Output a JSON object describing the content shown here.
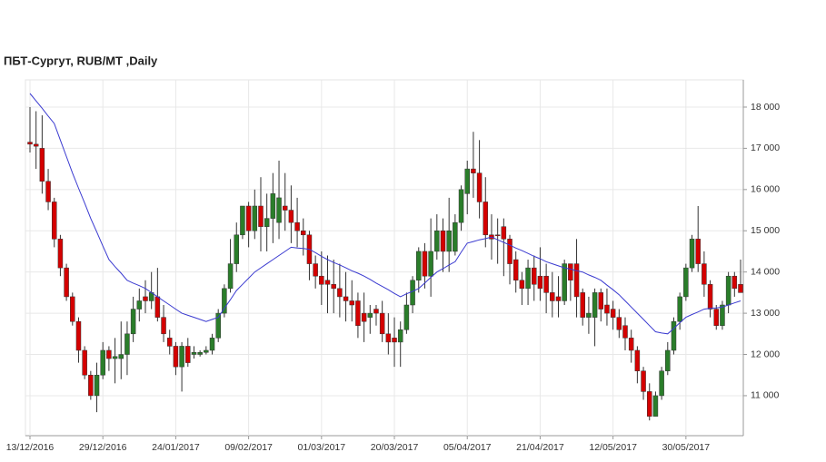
{
  "chart_data": {
    "type": "candlestick",
    "title": "ПБТ-Сургут,  RUB/MT ,Daily",
    "categories": [
      "13/12/2016",
      null,
      null,
      null,
      null,
      null,
      null,
      null,
      null,
      null,
      null,
      null,
      "29/12/2016",
      null,
      null,
      null,
      null,
      null,
      null,
      null,
      null,
      null,
      null,
      null,
      "24/01/2017",
      null,
      null,
      null,
      null,
      null,
      null,
      null,
      null,
      null,
      null,
      null,
      "09/02/2017",
      null,
      null,
      null,
      null,
      null,
      null,
      null,
      null,
      null,
      null,
      null,
      "01/03/2017",
      null,
      null,
      null,
      null,
      null,
      null,
      null,
      null,
      null,
      null,
      null,
      "20/03/2017",
      null,
      null,
      null,
      null,
      null,
      null,
      null,
      null,
      null,
      null,
      null,
      "05/04/2017",
      null,
      null,
      null,
      null,
      null,
      null,
      null,
      null,
      null,
      null,
      null,
      "21/04/2017",
      null,
      null,
      null,
      null,
      null,
      null,
      null,
      null,
      null,
      null,
      null,
      "12/05/2017",
      null,
      null,
      null,
      null,
      null,
      null,
      null,
      null,
      null,
      null,
      null,
      "30/05/2017",
      null,
      null,
      null,
      null,
      null,
      null,
      null,
      null,
      null
    ],
    "open": [
      17150,
      17100,
      17000,
      16200,
      15700,
      14800,
      14100,
      13400,
      12800,
      12100,
      11500,
      11000,
      11500,
      12100,
      11900,
      11900,
      12000,
      12500,
      13100,
      13400,
      13300,
      13400,
      12900,
      12400,
      12200,
      11700,
      12200,
      12000,
      12000,
      12050,
      12100,
      12400,
      13000,
      13600,
      14200,
      14900,
      15600,
      15000,
      15600,
      15100,
      15300,
      15200,
      15600,
      15500,
      15200,
      15000,
      14900,
      14200,
      13900,
      13800,
      13700,
      13600,
      13400,
      13300,
      13300,
      13000,
      12900,
      13100,
      13000,
      12500,
      12400,
      12300,
      12600,
      13200,
      13800,
      14500,
      13900,
      14500,
      15000,
      14500,
      14500,
      15200,
      15900,
      16500,
      16400,
      15700,
      14900,
      14900,
      15100,
      14800,
      14300,
      13800,
      13600,
      14100,
      13900,
      13900,
      13500,
      13400,
      13300,
      14200,
      14200,
      13500,
      12900,
      12900,
      13500,
      13200,
      13100,
      12900,
      12700,
      12400,
      12100,
      11600,
      11100,
      10500,
      11000,
      11600,
      12100,
      12800,
      13400,
      14100,
      14800,
      14200,
      13700,
      13100,
      12700,
      13200,
      13900,
      13700
    ],
    "high": [
      18000,
      17900,
      17800,
      16500,
      15800,
      14900,
      14200,
      13500,
      12900,
      12200,
      11600,
      11800,
      12300,
      12200,
      12400,
      12800,
      12800,
      13400,
      13600,
      13800,
      14000,
      14100,
      13200,
      12600,
      12300,
      12300,
      12400,
      12200,
      12100,
      12200,
      12500,
      13100,
      13700,
      14800,
      15200,
      15600,
      15700,
      16000,
      16300,
      15900,
      16400,
      16700,
      16400,
      16100,
      15800,
      15300,
      15000,
      14400,
      14500,
      14400,
      14300,
      14200,
      14000,
      13800,
      13500,
      13500,
      13200,
      13200,
      13300,
      13000,
      12900,
      12800,
      13500,
      13900,
      14600,
      14700,
      15300,
      15400,
      15300,
      15800,
      15400,
      16100,
      16700,
      17400,
      17200,
      16300,
      15400,
      15300,
      15300,
      14900,
      14500,
      14000,
      14300,
      14400,
      14600,
      14200,
      14000,
      13900,
      14300,
      14200,
      14800,
      13600,
      13400,
      13600,
      13600,
      13600,
      13300,
      13100,
      12900,
      12600,
      12200,
      11700,
      11300,
      11100,
      11700,
      12300,
      12900,
      13500,
      14200,
      14900,
      15600,
      14500,
      13800,
      13200,
      13300,
      14000,
      14000,
      14300
    ],
    "low": [
      16900,
      16500,
      15900,
      15500,
      14600,
      13900,
      13300,
      12700,
      11800,
      11400,
      10900,
      10600,
      11400,
      11600,
      11300,
      11400,
      11500,
      12300,
      12800,
      13000,
      13100,
      12800,
      12300,
      12000,
      11500,
      11100,
      11700,
      11900,
      11950,
      12000,
      12000,
      12300,
      12900,
      13500,
      14000,
      14800,
      14600,
      14800,
      14500,
      14500,
      14700,
      14800,
      15000,
      14700,
      14600,
      14400,
      13800,
      13600,
      13200,
      13000,
      13000,
      12900,
      12800,
      12800,
      12400,
      12300,
      12500,
      12700,
      12300,
      12000,
      11700,
      11700,
      12500,
      13000,
      13500,
      13600,
      13400,
      14300,
      14000,
      14000,
      14400,
      15000,
      15400,
      15800,
      15300,
      14600,
      14300,
      14200,
      13900,
      13700,
      13500,
      13200,
      13200,
      13300,
      13300,
      13000,
      12900,
      12900,
      13200,
      13300,
      12900,
      12700,
      12500,
      12200,
      12800,
      12700,
      12600,
      12400,
      12100,
      11800,
      11300,
      10900,
      10400,
      10500,
      10900,
      11500,
      12000,
      12600,
      13300,
      14000,
      14000,
      13400,
      12900,
      12600,
      12600,
      13000,
      13400,
      13500
    ],
    "close": [
      17100,
      17050,
      16200,
      15700,
      14800,
      14100,
      13400,
      12800,
      12100,
      11500,
      11000,
      11500,
      12100,
      11900,
      11950,
      12000,
      12500,
      13100,
      13300,
      13300,
      13500,
      12900,
      12500,
      12200,
      11700,
      12200,
      11800,
      12050,
      12050,
      12100,
      12400,
      13000,
      13600,
      14200,
      14900,
      15600,
      15000,
      15600,
      15100,
      15300,
      15900,
      15800,
      15500,
      15200,
      15000,
      14900,
      14200,
      13900,
      13700,
      13700,
      13600,
      13400,
      13300,
      13200,
      12700,
      12800,
      13000,
      13000,
      12500,
      12300,
      12300,
      12600,
      13200,
      13800,
      14500,
      13900,
      14500,
      15000,
      14500,
      15000,
      15200,
      16000,
      16500,
      16400,
      15700,
      14900,
      14800,
      14900,
      14800,
      14200,
      13800,
      13600,
      14100,
      13700,
      13600,
      13500,
      13300,
      13300,
      14200,
      13800,
      13400,
      12900,
      13000,
      13500,
      13100,
      13000,
      12900,
      12600,
      12400,
      12100,
      11600,
      11100,
      10500,
      11000,
      11600,
      12100,
      12800,
      13400,
      14100,
      14800,
      14200,
      13700,
      13100,
      12700,
      13200,
      13900,
      13600,
      13500
    ],
    "up_color": "#2a7d2a",
    "down_color": "#d40000",
    "moving_average": {
      "color": "#3a3ad0",
      "values": [
        18330,
        18150,
        17970,
        17780,
        17600,
        17200,
        16800,
        16400,
        16030,
        15670,
        15300,
        14970,
        14630,
        14300,
        14130,
        13970,
        13800,
        13730,
        13670,
        13600,
        13500,
        13400,
        13300,
        13200,
        13100,
        13000,
        12950,
        12900,
        12850,
        12800,
        12850,
        12900,
        13120,
        13330,
        13550,
        13700,
        13850,
        14000,
        14100,
        14200,
        14300,
        14400,
        14500,
        14600,
        14580,
        14570,
        14550,
        14470,
        14380,
        14300,
        14230,
        14170,
        14100,
        14030,
        13970,
        13900,
        13820,
        13730,
        13650,
        13570,
        13480,
        13400,
        13470,
        13530,
        13600,
        13730,
        13870,
        14000,
        14080,
        14170,
        14250,
        14480,
        14700,
        14740,
        14780,
        14810,
        14850,
        14780,
        14720,
        14650,
        14580,
        14520,
        14450,
        14380,
        14320,
        14250,
        14200,
        14150,
        14100,
        14070,
        14030,
        14000,
        13930,
        13870,
        13800,
        13680,
        13570,
        13450,
        13300,
        13150,
        13000,
        12850,
        12700,
        12550,
        12520,
        12500,
        12630,
        12770,
        12900,
        12970,
        13030,
        13100,
        13120,
        13130,
        13150,
        13200,
        13250,
        13300
      ]
    },
    "ylim": [
      10030,
      18660
    ],
    "yticks": [
      {
        "value": 11000,
        "label": "11 000"
      },
      {
        "value": 12000,
        "label": "12 000"
      },
      {
        "value": 13000,
        "label": "13 000"
      },
      {
        "value": 14000,
        "label": "14 000"
      },
      {
        "value": 15000,
        "label": "15 000"
      },
      {
        "value": 16000,
        "label": "16 000"
      },
      {
        "value": 17000,
        "label": "17 000"
      },
      {
        "value": 18000,
        "label": "18 000"
      }
    ],
    "grid": true
  }
}
